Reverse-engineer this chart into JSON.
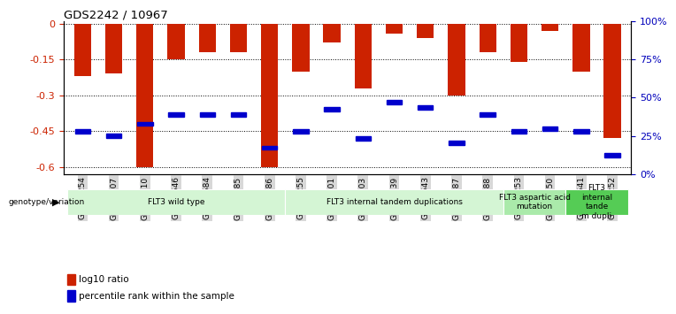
{
  "title": "GDS2242 / 10967",
  "samples": [
    "GSM48254",
    "GSM48507",
    "GSM48510",
    "GSM48546",
    "GSM48584",
    "GSM48585",
    "GSM48586",
    "GSM48255",
    "GSM48501",
    "GSM48503",
    "GSM48539",
    "GSM48543",
    "GSM48587",
    "GSM48588",
    "GSM48253",
    "GSM48350",
    "GSM48541",
    "GSM48252"
  ],
  "log10_ratio": [
    -0.22,
    -0.21,
    -0.6,
    -0.15,
    -0.12,
    -0.12,
    -0.6,
    -0.2,
    -0.08,
    -0.27,
    -0.04,
    -0.06,
    -0.3,
    -0.12,
    -0.16,
    -0.03,
    -0.2,
    -0.48
  ],
  "percentile_rank_y": [
    -0.45,
    -0.47,
    -0.42,
    -0.38,
    -0.38,
    -0.38,
    -0.52,
    -0.45,
    -0.36,
    -0.48,
    -0.33,
    -0.35,
    -0.5,
    -0.38,
    -0.45,
    -0.44,
    -0.45,
    -0.55
  ],
  "groups": [
    {
      "label": "FLT3 wild type",
      "start": 0,
      "end": 7,
      "color": "#d4f5d4"
    },
    {
      "label": "FLT3 internal tandem duplications",
      "start": 7,
      "end": 14,
      "color": "#d4f5d4"
    },
    {
      "label": "FLT3 aspartic acid\nmutation",
      "start": 14,
      "end": 16,
      "color": "#aaeaaa"
    },
    {
      "label": "FLT3\ninternal\ntande\nm dupli",
      "start": 16,
      "end": 18,
      "color": "#55cc55"
    }
  ],
  "bar_color": "#cc2200",
  "blue_color": "#0000cc",
  "ylim_left": [
    -0.63,
    0.01
  ],
  "yticks_left": [
    0.0,
    -0.15,
    -0.3,
    -0.45,
    -0.6
  ],
  "yticks_right": [
    100,
    75,
    50,
    25,
    0
  ],
  "ylabel_left_color": "#cc2200",
  "ylabel_right_color": "#0000bb",
  "tick_label_bg": "#d8d8d8",
  "background_color": "#ffffff",
  "grid_color": "#000000"
}
